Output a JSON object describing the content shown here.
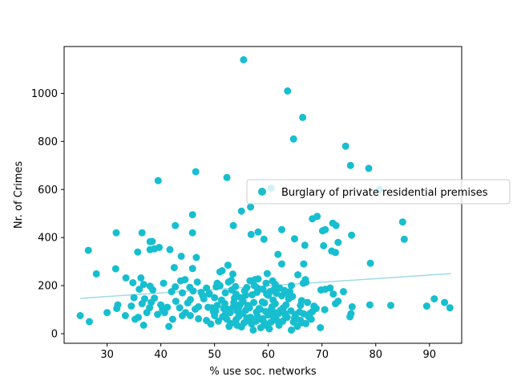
{
  "colors": {
    "scatter": "#17becf",
    "trend": "#9edae5",
    "axis": "#000000",
    "background": "#ffffff"
  },
  "chart_data": {
    "type": "scatter",
    "xlabel": "% use soc. networks",
    "ylabel": "Nr. of Crimes",
    "xlim": [
      22,
      96
    ],
    "ylim": [
      -40,
      1195
    ],
    "xticks": [
      30,
      40,
      50,
      60,
      70,
      80,
      90
    ],
    "yticks": [
      0,
      200,
      400,
      600,
      800,
      1000
    ],
    "grid": false,
    "legend": {
      "position": "right",
      "label": "Burglary of private residential premises"
    },
    "trend_line": {
      "x": [
        25,
        94
      ],
      "y": [
        147,
        250
      ]
    },
    "series": [
      {
        "name": "Burglary of private residential premises",
        "points": [
          [
            55.4,
            1140
          ],
          [
            63.6,
            1010
          ],
          [
            66.4,
            900
          ],
          [
            64.7,
            810
          ],
          [
            74.4,
            780
          ],
          [
            75.3,
            700
          ],
          [
            78.7,
            688
          ],
          [
            46.5,
            674
          ],
          [
            39.5,
            637
          ],
          [
            52.3,
            650
          ],
          [
            60.5,
            605
          ],
          [
            80.7,
            600
          ],
          [
            56.7,
            527
          ],
          [
            55.0,
            510
          ],
          [
            45.9,
            495
          ],
          [
            69.1,
            488
          ],
          [
            68.2,
            478
          ],
          [
            72.0,
            460
          ],
          [
            85.0,
            465
          ],
          [
            72.6,
            450
          ],
          [
            53.5,
            450
          ],
          [
            42.7,
            450
          ],
          [
            62.5,
            433
          ],
          [
            70.1,
            428
          ],
          [
            70.6,
            433
          ],
          [
            58.1,
            423
          ],
          [
            31.7,
            420
          ],
          [
            36.5,
            420
          ],
          [
            45.9,
            420
          ],
          [
            56.8,
            413
          ],
          [
            75.5,
            410
          ],
          [
            64.9,
            395
          ],
          [
            85.3,
            393
          ],
          [
            59.2,
            393
          ],
          [
            38.0,
            383
          ],
          [
            38.4,
            384
          ],
          [
            73.0,
            380
          ],
          [
            66.8,
            368
          ],
          [
            70.3,
            366
          ],
          [
            39.7,
            359
          ],
          [
            26.5,
            347
          ],
          [
            38.0,
            350
          ],
          [
            38.8,
            353
          ],
          [
            41.7,
            350
          ],
          [
            35.7,
            340
          ],
          [
            71.8,
            344
          ],
          [
            72.5,
            338
          ],
          [
            61.8,
            330
          ],
          [
            43.8,
            322
          ],
          [
            46.6,
            317
          ],
          [
            79.0,
            293
          ],
          [
            66.6,
            290
          ],
          [
            62.5,
            290
          ],
          [
            52.5,
            285
          ],
          [
            31.6,
            270
          ],
          [
            42.5,
            275
          ],
          [
            45.9,
            271
          ],
          [
            51.0,
            257
          ],
          [
            51.4,
            262
          ],
          [
            28.0,
            249
          ],
          [
            53.4,
            248
          ],
          [
            59.8,
            250
          ],
          [
            65.5,
            245
          ],
          [
            33.5,
            232
          ],
          [
            36.3,
            232
          ],
          [
            43.7,
            220
          ],
          [
            44.5,
            225
          ],
          [
            53.1,
            222
          ],
          [
            56.6,
            220
          ],
          [
            57.5,
            225
          ],
          [
            58.1,
            228
          ],
          [
            60.8,
            220
          ],
          [
            66.9,
            225
          ],
          [
            67.0,
            214
          ],
          [
            34.8,
            212
          ],
          [
            40.5,
            210
          ],
          [
            46.8,
            215
          ],
          [
            50.5,
            210
          ],
          [
            61.3,
            205
          ],
          [
            52.6,
            215
          ],
          [
            36.8,
            205
          ],
          [
            38.0,
            198
          ],
          [
            42.7,
            195
          ],
          [
            45.4,
            193
          ],
          [
            48.5,
            190
          ],
          [
            50.3,
            195
          ],
          [
            51.0,
            200
          ],
          [
            53.9,
            196
          ],
          [
            56.0,
            192
          ],
          [
            58.0,
            190
          ],
          [
            59.0,
            185
          ],
          [
            61.0,
            183
          ],
          [
            63.0,
            180
          ],
          [
            64.0,
            175
          ],
          [
            36.0,
            185
          ],
          [
            38.5,
            182
          ],
          [
            42.0,
            175
          ],
          [
            44.0,
            170
          ],
          [
            46.0,
            178
          ],
          [
            47.5,
            172
          ],
          [
            49.0,
            168
          ],
          [
            52.0,
            170
          ],
          [
            54.0,
            165
          ],
          [
            57.0,
            162
          ],
          [
            60.0,
            160
          ],
          [
            62.5,
            158
          ],
          [
            64.5,
            155
          ],
          [
            69.8,
            182
          ],
          [
            70.6,
            185
          ],
          [
            71.5,
            190
          ],
          [
            74.0,
            175
          ],
          [
            72.1,
            165
          ],
          [
            35.0,
            150
          ],
          [
            37.0,
            145
          ],
          [
            38.8,
            148
          ],
          [
            45.5,
            142
          ],
          [
            48.0,
            145
          ],
          [
            50.0,
            150
          ],
          [
            51.3,
            140
          ],
          [
            53.7,
            148
          ],
          [
            55.3,
            135
          ],
          [
            57.3,
            130
          ],
          [
            59.3,
            128
          ],
          [
            61.3,
            125
          ],
          [
            63.3,
            120
          ],
          [
            66.0,
            118
          ],
          [
            67.3,
            130
          ],
          [
            68.5,
            115
          ],
          [
            70.5,
            100
          ],
          [
            73.0,
            135
          ],
          [
            72.5,
            125
          ],
          [
            32.0,
            120
          ],
          [
            34.5,
            115
          ],
          [
            36.5,
            125
          ],
          [
            40.0,
            120
          ],
          [
            41.2,
            110
          ],
          [
            43.5,
            108
          ],
          [
            47.0,
            112
          ],
          [
            49.5,
            108
          ],
          [
            51.7,
            105
          ],
          [
            54.5,
            110
          ],
          [
            56.5,
            108
          ],
          [
            58.5,
            102
          ],
          [
            62.3,
            98
          ],
          [
            64.2,
            95
          ],
          [
            65.8,
            90
          ],
          [
            67.8,
            85
          ],
          [
            30.0,
            88
          ],
          [
            31.8,
            105
          ],
          [
            33.4,
            75
          ],
          [
            35.2,
            60
          ],
          [
            37.4,
            88
          ],
          [
            39.4,
            80
          ],
          [
            40.7,
            88
          ],
          [
            42.2,
            60
          ],
          [
            44.0,
            75
          ],
          [
            45.5,
            75
          ],
          [
            47.0,
            62
          ],
          [
            48.5,
            55
          ],
          [
            50.7,
            52
          ],
          [
            52.3,
            60
          ],
          [
            54.0,
            58
          ],
          [
            56.0,
            65
          ],
          [
            58.0,
            72
          ],
          [
            60.0,
            78
          ],
          [
            61.8,
            82
          ],
          [
            63.5,
            68
          ],
          [
            65.2,
            62
          ],
          [
            66.6,
            82
          ],
          [
            68.0,
            60
          ],
          [
            25.0,
            75
          ],
          [
            26.7,
            50
          ],
          [
            35.8,
            68
          ],
          [
            36.8,
            35
          ],
          [
            41.5,
            30
          ],
          [
            49.3,
            40
          ],
          [
            52.7,
            30
          ],
          [
            54.2,
            35
          ],
          [
            55.5,
            45
          ],
          [
            56.9,
            40
          ],
          [
            58.6,
            25
          ],
          [
            60.2,
            20
          ],
          [
            62.0,
            35
          ],
          [
            64.3,
            15
          ],
          [
            65.4,
            30
          ],
          [
            67.0,
            42
          ],
          [
            69.7,
            25
          ],
          [
            50.2,
            95
          ],
          [
            52.9,
            88
          ],
          [
            55.2,
            85
          ],
          [
            57.8,
            90
          ],
          [
            59.5,
            92
          ],
          [
            61.2,
            88
          ],
          [
            63.0,
            85
          ],
          [
            65.0,
            80
          ],
          [
            48.8,
            110
          ],
          [
            50.5,
            118
          ],
          [
            53.5,
            112
          ],
          [
            55.8,
            98
          ],
          [
            58.3,
            105
          ],
          [
            60.7,
            112
          ],
          [
            62.8,
            108
          ],
          [
            75.4,
            83
          ],
          [
            75.6,
            112
          ],
          [
            75.2,
            70
          ],
          [
            78.9,
            120
          ],
          [
            82.8,
            118
          ],
          [
            89.5,
            115
          ],
          [
            90.9,
            145
          ],
          [
            92.8,
            130
          ],
          [
            93.8,
            108
          ],
          [
            68.9,
            105
          ],
          [
            68.2,
            92
          ],
          [
            51.9,
            125
          ],
          [
            54.8,
            122
          ],
          [
            56.2,
            118
          ],
          [
            58.9,
            132
          ],
          [
            60.9,
            140
          ],
          [
            63.8,
            145
          ],
          [
            66.2,
            138
          ],
          [
            49.0,
            165
          ],
          [
            47.8,
            158
          ],
          [
            53.2,
            182
          ],
          [
            55.6,
            178
          ],
          [
            57.9,
            172
          ],
          [
            59.7,
            165
          ],
          [
            61.5,
            168
          ],
          [
            63.7,
            163
          ],
          [
            45.0,
            128
          ],
          [
            42.8,
            135
          ],
          [
            40.3,
            100
          ],
          [
            38.2,
            130
          ],
          [
            37.9,
            108
          ],
          [
            44.6,
            88
          ],
          [
            46.4,
            102
          ],
          [
            50.0,
            75
          ],
          [
            52.0,
            80
          ],
          [
            54.5,
            72
          ],
          [
            56.7,
            68
          ],
          [
            58.8,
            58
          ],
          [
            60.5,
            48
          ],
          [
            62.7,
            52
          ],
          [
            64.7,
            48
          ],
          [
            66.2,
            45
          ],
          [
            57.2,
            15
          ],
          [
            59.5,
            35
          ],
          [
            61.6,
            55
          ],
          [
            53.0,
            42
          ],
          [
            51.5,
            70
          ],
          [
            49.8,
            92
          ],
          [
            57.7,
            52
          ],
          [
            59.0,
            62
          ],
          [
            61.0,
            70
          ],
          [
            63.2,
            75
          ],
          [
            64.9,
            65
          ],
          [
            66.0,
            55
          ],
          [
            67.5,
            70
          ],
          [
            60.5,
            100
          ],
          [
            59.3,
            45
          ],
          [
            55.0,
            28
          ],
          [
            56.1,
            55
          ],
          [
            54.2,
            95
          ],
          [
            52.4,
            102
          ],
          [
            53.6,
            130
          ],
          [
            54.9,
            150
          ],
          [
            55.8,
            160
          ],
          [
            57.4,
            200
          ],
          [
            59.6,
            210
          ],
          [
            60.3,
            175
          ],
          [
            62.1,
            190
          ],
          [
            64.3,
            200
          ],
          [
            66.5,
            210
          ]
        ]
      }
    ]
  }
}
